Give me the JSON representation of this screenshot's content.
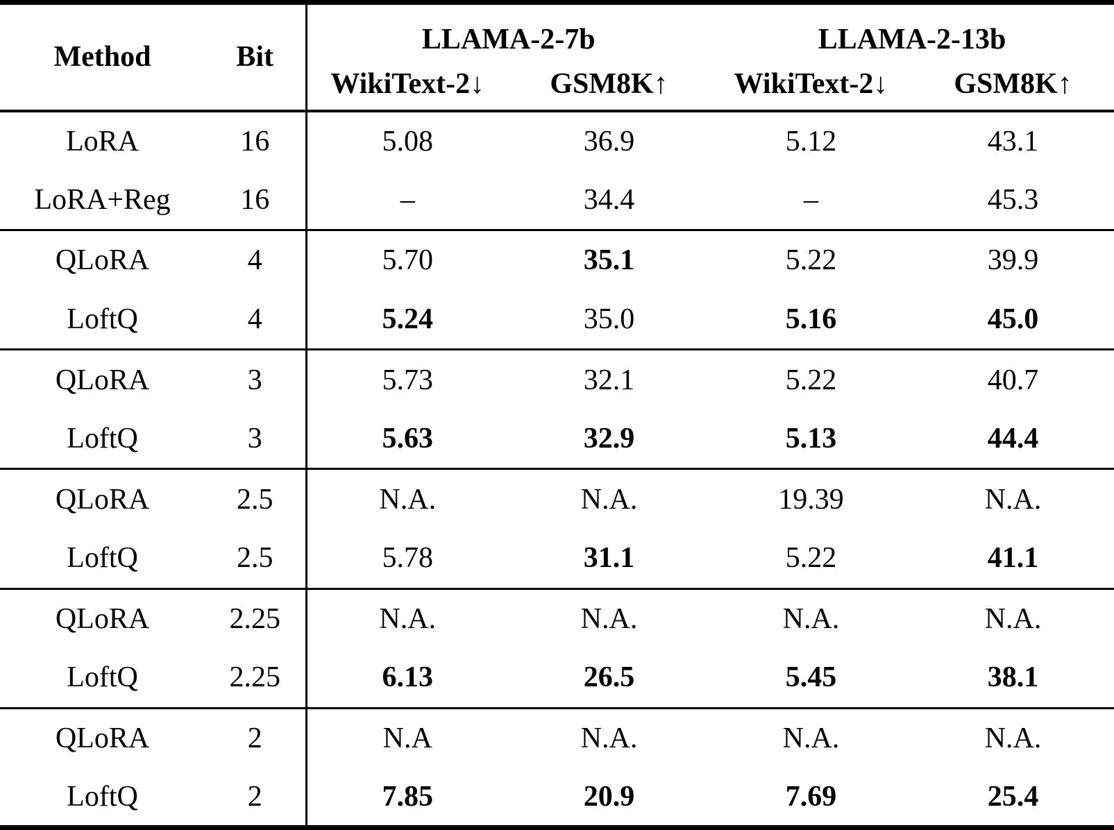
{
  "table": {
    "header": {
      "method": "Method",
      "bit": "Bit",
      "models": [
        "LLAMA-2-7b",
        "LLAMA-2-13b"
      ],
      "metrics": [
        "WikiText-2↓",
        "GSM8K↑",
        "WikiText-2↓",
        "GSM8K↑"
      ]
    },
    "groups": [
      {
        "rows": [
          {
            "method": "LoRA",
            "bit": "16",
            "values": [
              {
                "t": "5.08"
              },
              {
                "t": "36.9"
              },
              {
                "t": "5.12"
              },
              {
                "t": "43.1"
              }
            ]
          },
          {
            "method": "LoRA+Reg",
            "bit": "16",
            "values": [
              {
                "t": "–"
              },
              {
                "t": "34.4"
              },
              {
                "t": "–"
              },
              {
                "t": "45.3"
              }
            ]
          }
        ]
      },
      {
        "rows": [
          {
            "method": "QLoRA",
            "bit": "4",
            "values": [
              {
                "t": "5.70"
              },
              {
                "t": "35.1",
                "bold": true
              },
              {
                "t": "5.22"
              },
              {
                "t": "39.9"
              }
            ]
          },
          {
            "method": "LoftQ",
            "bit": "4",
            "values": [
              {
                "t": "5.24",
                "bold": true
              },
              {
                "t": "35.0"
              },
              {
                "t": "5.16",
                "bold": true
              },
              {
                "t": "45.0",
                "bold": true
              }
            ]
          }
        ]
      },
      {
        "rows": [
          {
            "method": "QLoRA",
            "bit": "3",
            "values": [
              {
                "t": "5.73"
              },
              {
                "t": "32.1"
              },
              {
                "t": "5.22"
              },
              {
                "t": "40.7"
              }
            ]
          },
          {
            "method": "LoftQ",
            "bit": "3",
            "values": [
              {
                "t": "5.63",
                "bold": true
              },
              {
                "t": "32.9",
                "bold": true
              },
              {
                "t": "5.13",
                "bold": true
              },
              {
                "t": "44.4",
                "bold": true
              }
            ]
          }
        ]
      },
      {
        "rows": [
          {
            "method": "QLoRA",
            "bit": "2.5",
            "values": [
              {
                "t": "N.A."
              },
              {
                "t": "N.A."
              },
              {
                "t": "19.39"
              },
              {
                "t": "N.A."
              }
            ]
          },
          {
            "method": "LoftQ",
            "bit": "2.5",
            "values": [
              {
                "t": "5.78"
              },
              {
                "t": "31.1",
                "bold": true
              },
              {
                "t": "5.22"
              },
              {
                "t": "41.1",
                "bold": true
              }
            ]
          }
        ]
      },
      {
        "rows": [
          {
            "method": "QLoRA",
            "bit": "2.25",
            "values": [
              {
                "t": "N.A."
              },
              {
                "t": "N.A."
              },
              {
                "t": "N.A."
              },
              {
                "t": "N.A."
              }
            ]
          },
          {
            "method": "LoftQ",
            "bit": "2.25",
            "values": [
              {
                "t": "6.13",
                "bold": true
              },
              {
                "t": "26.5",
                "bold": true
              },
              {
                "t": "5.45",
                "bold": true
              },
              {
                "t": "38.1",
                "bold": true
              }
            ]
          }
        ]
      },
      {
        "rows": [
          {
            "method": "QLoRA",
            "bit": "2",
            "values": [
              {
                "t": "N.A"
              },
              {
                "t": "N.A."
              },
              {
                "t": "N.A."
              },
              {
                "t": "N.A."
              }
            ]
          },
          {
            "method": "LoftQ",
            "bit": "2",
            "values": [
              {
                "t": "7.85",
                "bold": true
              },
              {
                "t": "20.9",
                "bold": true
              },
              {
                "t": "7.69",
                "bold": true
              },
              {
                "t": "25.4",
                "bold": true
              }
            ]
          }
        ]
      }
    ]
  },
  "colors": {
    "text": "#000000",
    "rule": "#000000",
    "background": "#ffffff"
  }
}
